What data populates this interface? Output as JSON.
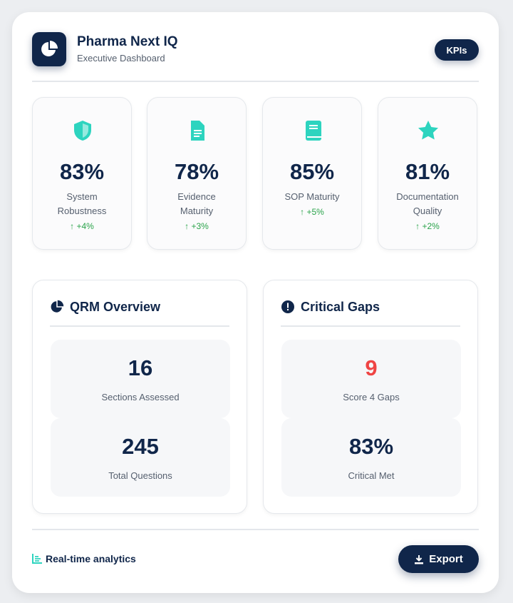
{
  "header": {
    "title": "Pharma Next IQ",
    "subtitle": "Executive Dashboard",
    "badge": "KPIs"
  },
  "kpis": [
    {
      "value": "83%",
      "label": "System Robustness",
      "change": "+4%"
    },
    {
      "value": "78%",
      "label": "Evidence Maturity",
      "change": "+3%"
    },
    {
      "value": "85%",
      "label": "SOP Maturity",
      "change": "+5%"
    },
    {
      "value": "81%",
      "label": "Documentation Quality",
      "change": "+2%"
    }
  ],
  "panels": [
    {
      "title": "QRM Overview",
      "stats": [
        {
          "value": "16",
          "label": "Sections Assessed"
        },
        {
          "value": "245",
          "label": "Total Questions"
        }
      ]
    },
    {
      "title": "Critical Gaps",
      "stats": [
        {
          "value": "9",
          "label": "Score 4 Gaps"
        },
        {
          "value": "83%",
          "label": "Critical Met"
        }
      ]
    }
  ],
  "footer": {
    "note": "Real-time analytics",
    "button": "Export"
  }
}
